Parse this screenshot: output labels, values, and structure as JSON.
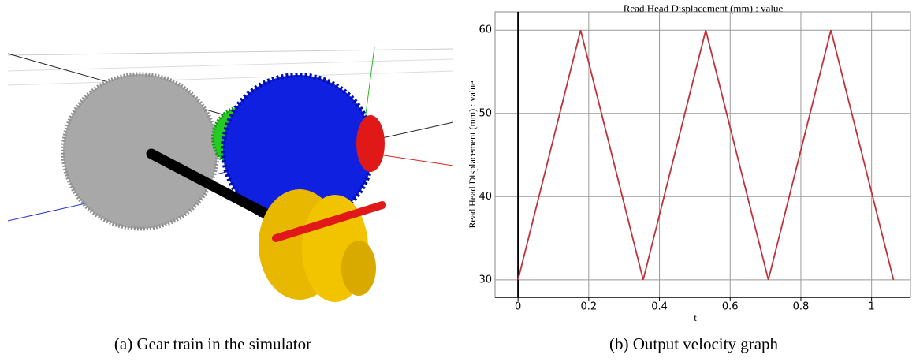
{
  "captions": {
    "left": "(a) Gear train in the simulator",
    "right": "(b) Output velocity graph"
  },
  "chart_data": {
    "type": "line",
    "title": "Read Head Displacement (mm) : value",
    "y_label": "Read Head Displacement (mm) : value",
    "x_label": "t",
    "x": [
      0,
      0.177,
      0.354,
      0.531,
      0.708,
      0.885,
      1.062
    ],
    "values": [
      30,
      60,
      30,
      60,
      30,
      60,
      30
    ],
    "color": "#c0323a",
    "xlim": [
      -0.065,
      1.11
    ],
    "ylim": [
      27.9,
      62.2
    ],
    "xticks": [
      0,
      0.2,
      0.4,
      0.6,
      0.8,
      1
    ],
    "yticks": [
      30,
      40,
      50,
      60
    ],
    "grid": true
  }
}
